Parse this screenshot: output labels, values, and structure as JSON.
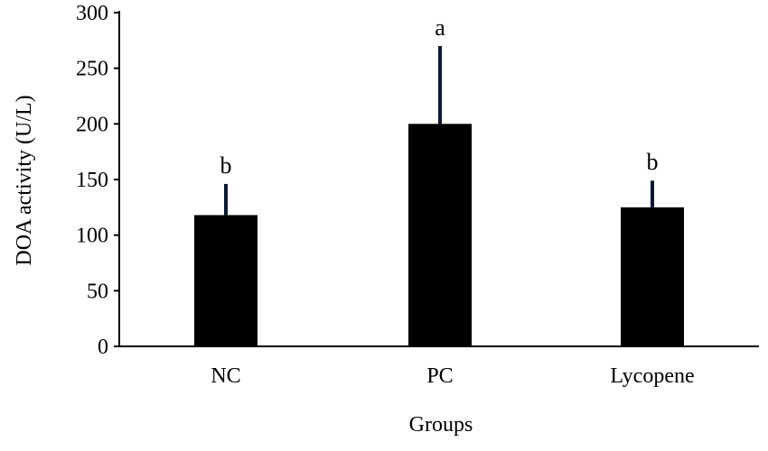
{
  "chart_data": {
    "type": "bar",
    "title": "",
    "xlabel": "Groups",
    "ylabel": "DOA activity (U/L)",
    "categories": [
      "NC",
      "PC",
      "Lycopene"
    ],
    "values": [
      118,
      200,
      125
    ],
    "error_upper": [
      146,
      270,
      149
    ],
    "significance_letters": [
      "b",
      "a",
      "b"
    ],
    "ylim": [
      0,
      300
    ],
    "yticks": [
      0,
      50,
      100,
      150,
      200,
      250,
      300
    ],
    "ytick_labels": [
      "0",
      "50",
      "100",
      "150",
      "200",
      "250",
      "300"
    ],
    "grid": false,
    "legend": "none",
    "colors": {
      "bar": "#000000",
      "error_bar": "#0b1a33",
      "axis": "#000000"
    }
  }
}
